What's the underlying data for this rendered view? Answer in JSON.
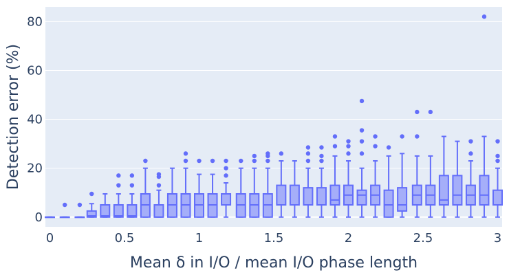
{
  "chart_data": {
    "type": "box",
    "xlabel": "Mean δ in I/O / mean I/O phase length",
    "ylabel": "Detection error (%)",
    "xlim": [
      -0.03,
      3.03
    ],
    "ylim": [
      -4,
      86
    ],
    "x_ticks": [
      0,
      0.5,
      1,
      1.5,
      2,
      2.5,
      3
    ],
    "x_tick_labels": [
      "0",
      "0.5",
      "1",
      "1.5",
      "2",
      "2.5",
      "3"
    ],
    "y_ticks": [
      0,
      20,
      40,
      60,
      80
    ],
    "y_tick_labels": [
      "0",
      "20",
      "40",
      "60",
      "80"
    ],
    "grid": true,
    "colors": {
      "plot_bg": "#e5ecf6",
      "grid": "#ffffff",
      "box_fill": "#a5aef9",
      "box_line": "#636efa",
      "text": "#2a3f5f"
    },
    "boxes": [
      {
        "x": 0.0,
        "q1": 0,
        "median": 0,
        "q3": 0,
        "lower": 0,
        "upper": 0,
        "outliers": []
      },
      {
        "x": 0.1,
        "q1": 0,
        "median": 0,
        "q3": 0,
        "lower": 0,
        "upper": 0,
        "outliers": [
          5
        ]
      },
      {
        "x": 0.2,
        "q1": 0,
        "median": 0,
        "q3": 0,
        "lower": 0,
        "upper": 0,
        "outliers": [
          5
        ]
      },
      {
        "x": 0.28,
        "q1": 0,
        "median": 0.5,
        "q3": 2.5,
        "lower": 0,
        "upper": 5.5,
        "outliers": [
          9.5
        ]
      },
      {
        "x": 0.37,
        "q1": 0,
        "median": 0.5,
        "q3": 5,
        "lower": 0,
        "upper": 9.5,
        "outliers": []
      },
      {
        "x": 0.46,
        "q1": 0,
        "median": 0.5,
        "q3": 5,
        "lower": 0,
        "upper": 9.5,
        "outliers": [
          13,
          17
        ]
      },
      {
        "x": 0.55,
        "q1": 0,
        "median": 0.5,
        "q3": 5,
        "lower": 0,
        "upper": 9.5,
        "outliers": [
          13,
          17
        ]
      },
      {
        "x": 0.64,
        "q1": 0,
        "median": 5,
        "q3": 9.5,
        "lower": 0,
        "upper": 20,
        "outliers": [
          23
        ]
      },
      {
        "x": 0.73,
        "q1": 0,
        "median": 0,
        "q3": 5,
        "lower": 0,
        "upper": 11,
        "outliers": [
          13,
          16.5,
          17.5
        ]
      },
      {
        "x": 0.82,
        "q1": 0,
        "median": 5,
        "q3": 9.5,
        "lower": 0,
        "upper": 20,
        "outliers": []
      },
      {
        "x": 0.91,
        "q1": 0,
        "median": 5,
        "q3": 9.5,
        "lower": 0,
        "upper": 20,
        "outliers": [
          23,
          26
        ]
      },
      {
        "x": 1.0,
        "q1": 0,
        "median": 5,
        "q3": 9.5,
        "lower": 0,
        "upper": 17.5,
        "outliers": [
          23
        ]
      },
      {
        "x": 1.09,
        "q1": 0,
        "median": 5,
        "q3": 9.5,
        "lower": 0,
        "upper": 17.5,
        "outliers": [
          23
        ]
      },
      {
        "x": 1.18,
        "q1": 5,
        "median": 5,
        "q3": 9.5,
        "lower": 0,
        "upper": 14,
        "outliers": [
          17,
          20,
          23
        ]
      },
      {
        "x": 1.28,
        "q1": 0,
        "median": 5,
        "q3": 9.5,
        "lower": 0,
        "upper": 20,
        "outliers": [
          23
        ]
      },
      {
        "x": 1.37,
        "q1": 0,
        "median": 5,
        "q3": 9.5,
        "lower": 0,
        "upper": 20,
        "outliers": [
          23,
          25
        ]
      },
      {
        "x": 1.46,
        "q1": 0,
        "median": 5,
        "q3": 9.5,
        "lower": 0,
        "upper": 20,
        "outliers": [
          23,
          25,
          26
        ]
      },
      {
        "x": 1.55,
        "q1": 5,
        "median": 5,
        "q3": 13,
        "lower": 0,
        "upper": 23,
        "outliers": [
          26
        ]
      },
      {
        "x": 1.64,
        "q1": 5,
        "median": 5,
        "q3": 13,
        "lower": 0,
        "upper": 23,
        "outliers": []
      },
      {
        "x": 1.73,
        "q1": 5,
        "median": 5,
        "q3": 12,
        "lower": 0,
        "upper": 20,
        "outliers": [
          23,
          26,
          28.5
        ]
      },
      {
        "x": 1.82,
        "q1": 5,
        "median": 5,
        "q3": 12,
        "lower": 0,
        "upper": 20,
        "outliers": [
          23,
          25,
          28.5
        ]
      },
      {
        "x": 1.91,
        "q1": 5,
        "median": 7,
        "q3": 13,
        "lower": 0,
        "upper": 25,
        "outliers": [
          29,
          33
        ]
      },
      {
        "x": 2.0,
        "q1": 5,
        "median": 9,
        "q3": 13,
        "lower": 0,
        "upper": 23,
        "outliers": [
          26,
          29,
          31
        ]
      },
      {
        "x": 2.09,
        "q1": 5,
        "median": 9,
        "q3": 11,
        "lower": 0,
        "upper": 20,
        "outliers": [
          26,
          31,
          35.5,
          47.5
        ]
      },
      {
        "x": 2.18,
        "q1": 5,
        "median": 9,
        "q3": 13,
        "lower": 0,
        "upper": 23,
        "outliers": [
          29,
          33
        ]
      },
      {
        "x": 2.27,
        "q1": 0,
        "median": 5,
        "q3": 11,
        "lower": 0,
        "upper": 25,
        "outliers": [
          28.5
        ]
      },
      {
        "x": 2.36,
        "q1": 2.5,
        "median": 5,
        "q3": 12,
        "lower": 0,
        "upper": 26,
        "outliers": [
          33
        ]
      },
      {
        "x": 2.46,
        "q1": 5,
        "median": 9,
        "q3": 13,
        "lower": 0,
        "upper": 25,
        "outliers": [
          33,
          43
        ]
      },
      {
        "x": 2.55,
        "q1": 5,
        "median": 9,
        "q3": 13,
        "lower": 0,
        "upper": 25,
        "outliers": [
          43
        ]
      },
      {
        "x": 2.64,
        "q1": 5,
        "median": 7,
        "q3": 17,
        "lower": 0,
        "upper": 33,
        "outliers": []
      },
      {
        "x": 2.73,
        "q1": 5,
        "median": 9,
        "q3": 17,
        "lower": 0,
        "upper": 31,
        "outliers": []
      },
      {
        "x": 2.82,
        "q1": 5,
        "median": 9,
        "q3": 13,
        "lower": 0,
        "upper": 23,
        "outliers": [
          26,
          31
        ]
      },
      {
        "x": 2.91,
        "q1": 5,
        "median": 9,
        "q3": 17,
        "lower": 0,
        "upper": 33,
        "outliers": [
          82
        ]
      },
      {
        "x": 3.0,
        "q1": 5,
        "median": 5,
        "q3": 11,
        "lower": 0,
        "upper": 20,
        "outliers": [
          23,
          25,
          31
        ]
      }
    ]
  }
}
